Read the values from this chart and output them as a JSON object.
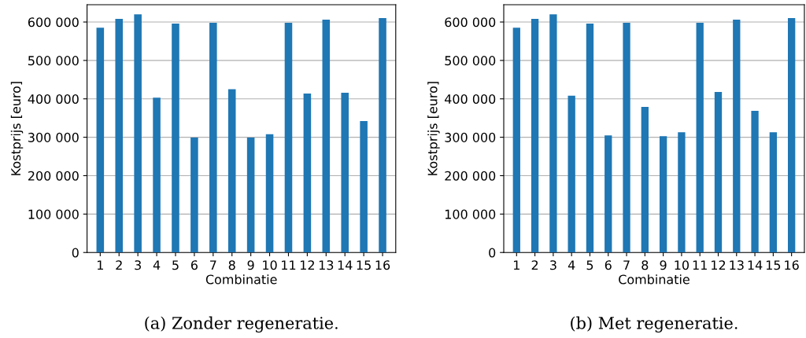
{
  "chart_data": [
    {
      "type": "bar",
      "categories": [
        "1",
        "2",
        "3",
        "4",
        "5",
        "6",
        "7",
        "8",
        "9",
        "10",
        "11",
        "12",
        "13",
        "14",
        "15",
        "16"
      ],
      "series": [
        {
          "color": "#1f77b4",
          "values": [
            585000,
            608000,
            620000,
            403000,
            596000,
            299000,
            598000,
            425000,
            299000,
            308000,
            598000,
            414000,
            606000,
            416000,
            342000,
            610000
          ]
        }
      ],
      "xlabel": "Combinatie",
      "ylabel": "Kostprijs [euro]",
      "ylim": [
        0,
        645000
      ],
      "yticks": [
        {
          "value": 0,
          "label": "0"
        },
        {
          "value": 100000,
          "label": "100 000"
        },
        {
          "value": 200000,
          "label": "200 000"
        },
        {
          "value": 300000,
          "label": "300 000"
        },
        {
          "value": 400000,
          "label": "400 000"
        },
        {
          "value": 500000,
          "label": "500 000"
        },
        {
          "value": 600000,
          "label": "600 000"
        }
      ],
      "grid": "y",
      "annotations": [
        "(a) Zonder regeneratie."
      ]
    },
    {
      "type": "bar",
      "categories": [
        "1",
        "2",
        "3",
        "4",
        "5",
        "6",
        "7",
        "8",
        "9",
        "10",
        "11",
        "12",
        "13",
        "14",
        "15",
        "16"
      ],
      "series": [
        {
          "color": "#1f77b4",
          "values": [
            585000,
            608000,
            620000,
            408000,
            596000,
            305000,
            598000,
            379000,
            303000,
            313000,
            598000,
            418000,
            606000,
            369000,
            313000,
            610000
          ]
        }
      ],
      "xlabel": "Combinatie",
      "ylabel": "Kostprijs [euro]",
      "ylim": [
        0,
        645000
      ],
      "yticks": [
        {
          "value": 0,
          "label": "0"
        },
        {
          "value": 100000,
          "label": "100 000"
        },
        {
          "value": 200000,
          "label": "200 000"
        },
        {
          "value": 300000,
          "label": "300 000"
        },
        {
          "value": 400000,
          "label": "400 000"
        },
        {
          "value": 500000,
          "label": "500 000"
        },
        {
          "value": 600000,
          "label": "600 000"
        }
      ],
      "grid": "y",
      "annotations": [
        "(b) Met regeneratie."
      ]
    }
  ]
}
